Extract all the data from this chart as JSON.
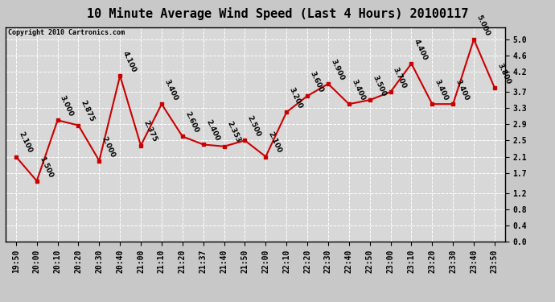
{
  "title": "10 Minute Average Wind Speed (Last 4 Hours) 20100117",
  "copyright": "Copyright 2010 Cartronics.com",
  "times": [
    "19:50",
    "20:00",
    "20:10",
    "20:20",
    "20:30",
    "20:40",
    "21:00",
    "21:10",
    "21:20",
    "21:37",
    "21:40",
    "21:50",
    "22:00",
    "22:10",
    "22:20",
    "22:30",
    "22:40",
    "22:50",
    "23:00",
    "23:10",
    "23:20",
    "23:30",
    "23:40",
    "23:50"
  ],
  "values": [
    2.1,
    1.5,
    3.0,
    2.875,
    2.0,
    4.1,
    2.375,
    3.4,
    2.6,
    2.4,
    2.353,
    2.5,
    2.1,
    3.2,
    3.6,
    3.9,
    3.4,
    3.5,
    3.7,
    4.4,
    3.4,
    3.4,
    5.0,
    3.8
  ],
  "labels": [
    "2.100",
    "1.500",
    "3.000",
    "2.875",
    "2.000",
    "4.100",
    "2.375",
    "3.400",
    "2.600",
    "2.400",
    "2.353",
    "2.500",
    "2.100",
    "3.200",
    "3.600",
    "3.900",
    "3.400",
    "3.500",
    "3.700",
    "4.400",
    "3.400",
    "3.400",
    "5.000",
    "3.800"
  ],
  "ylim": [
    0.0,
    5.3
  ],
  "yticks": [
    0.0,
    0.4,
    0.8,
    1.2,
    1.7,
    2.1,
    2.5,
    2.9,
    3.3,
    3.7,
    4.2,
    4.6,
    5.0
  ],
  "line_color": "#cc0000",
  "marker_color": "#cc0000",
  "bg_color": "#c8c8c8",
  "plot_bg": "#d8d8d8",
  "grid_color": "#ffffff",
  "title_fontsize": 11,
  "label_fontsize": 6.5,
  "tick_fontsize": 7,
  "copyright_fontsize": 6
}
